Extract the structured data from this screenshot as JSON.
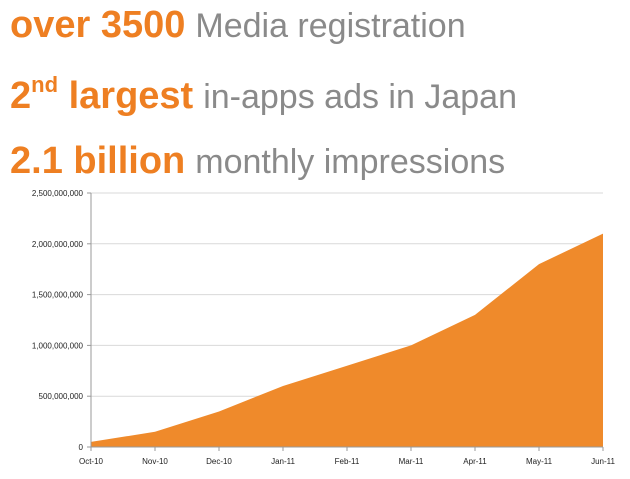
{
  "headlines": [
    {
      "strong": "over 3500",
      "rest": "Media registration"
    },
    {
      "strong_main": "2",
      "strong_sup": "nd",
      "strong_tail": " largest",
      "rest": "in-apps ads in Japan"
    },
    {
      "strong": "2.1 billion",
      "rest": "monthly impressions"
    }
  ],
  "colors": {
    "accent": "#ee7f22",
    "headline_gray": "#8a8a8a",
    "area_fill": "#ef8a2b",
    "grid": "#d9d9d9",
    "axis": "#999999"
  },
  "chart_data": {
    "type": "area",
    "categories": [
      "Oct-10",
      "Nov-10",
      "Dec-10",
      "Jan-11",
      "Feb-11",
      "Mar-11",
      "Apr-11",
      "May-11",
      "Jun-11"
    ],
    "values": [
      50000000,
      150000000,
      350000000,
      600000000,
      800000000,
      1000000000,
      1300000000,
      1800000000,
      2100000000
    ],
    "y_ticks": [
      0,
      500000000,
      1000000000,
      1500000000,
      2000000000,
      2500000000
    ],
    "y_tick_labels": [
      "0",
      "500,000,000",
      "1,000,000,000",
      "1,500,000,000",
      "2,000,000,000",
      "2,500,000,000"
    ],
    "ylim": [
      0,
      2500000000
    ],
    "title": "",
    "xlabel": "",
    "ylabel": "",
    "grid": true,
    "legend": "none"
  }
}
